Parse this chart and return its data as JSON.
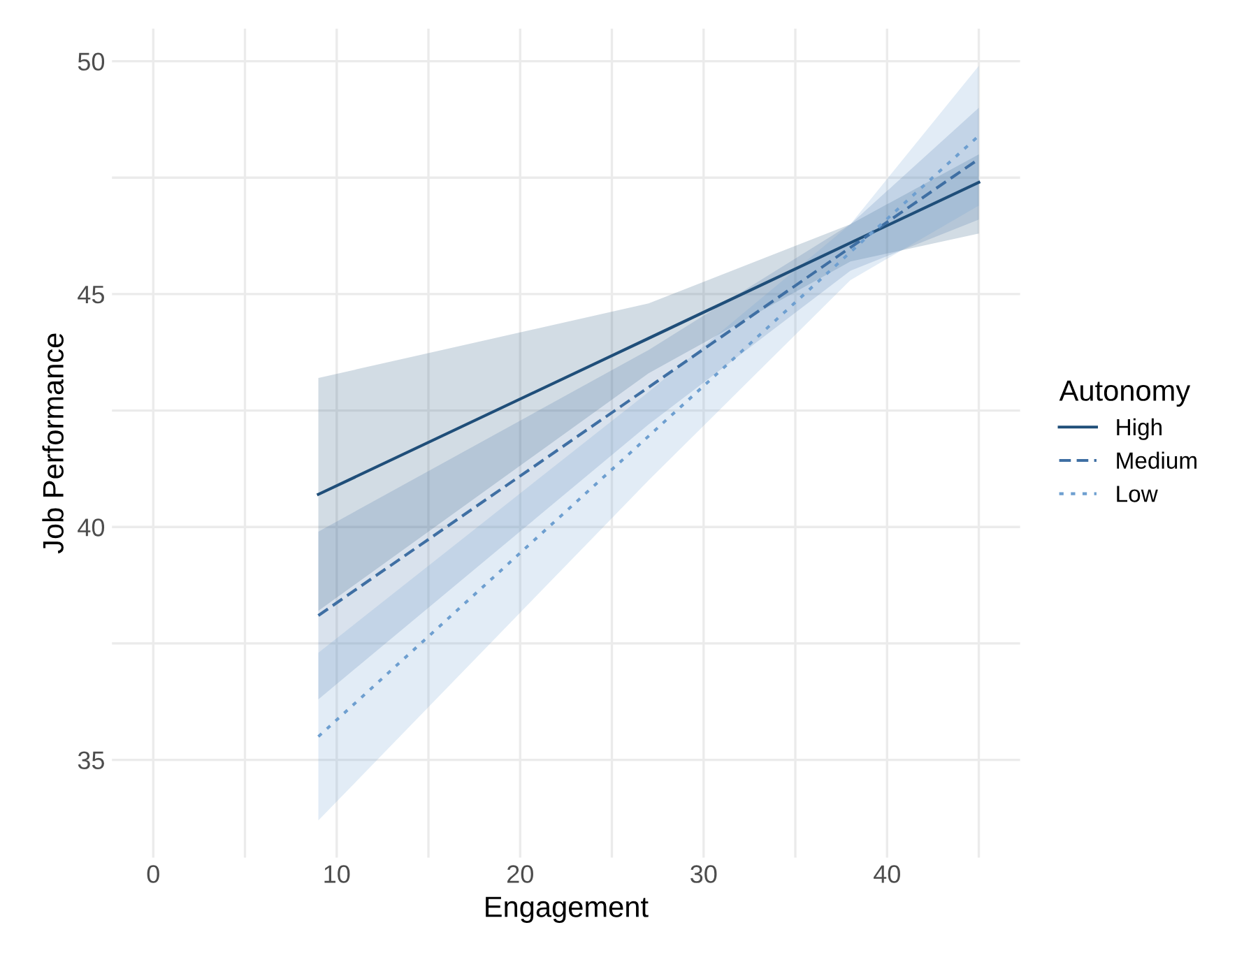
{
  "chart_data": {
    "type": "line",
    "xlabel": "Engagement",
    "ylabel": "Job Performance",
    "legend_title": "Autonomy",
    "legend": "right",
    "grid": true,
    "marker": "none",
    "xlim": [
      -2.25,
      47.25
    ],
    "ylim": [
      32.9,
      50.7
    ],
    "xticks": [
      0,
      {
        "value": 5,
        "label": null
      },
      10,
      {
        "value": 15,
        "label": null
      },
      20,
      {
        "value": 25,
        "label": null
      },
      30,
      {
        "value": 35,
        "label": null
      },
      40,
      {
        "value": 45,
        "label": null
      }
    ],
    "yticks": [
      35,
      {
        "value": 37.5,
        "label": null
      },
      40,
      {
        "value": 42.5,
        "label": null
      },
      45,
      {
        "value": 47.5,
        "label": null
      },
      50
    ],
    "x": [
      9,
      27,
      38,
      45
    ],
    "series": [
      {
        "name": "High",
        "color": "#1f4e79",
        "line_style": "solid",
        "values": [
          40.7,
          44.05,
          46.1,
          47.4
        ],
        "lower": [
          38.2,
          43.3,
          45.7,
          46.3
        ],
        "upper": [
          43.2,
          44.8,
          46.5,
          48.0
        ]
      },
      {
        "name": "Medium",
        "color": "#3f6fa3",
        "line_style": "dashed",
        "values": [
          38.1,
          43.0,
          46.0,
          47.9
        ],
        "lower": [
          36.3,
          42.2,
          45.5,
          46.6
        ],
        "upper": [
          39.9,
          43.8,
          46.5,
          49.0
        ]
      },
      {
        "name": "Low",
        "color": "#6e9fd0",
        "line_style": "dotted",
        "values": [
          35.5,
          41.95,
          45.9,
          48.4
        ],
        "lower": [
          33.7,
          41.0,
          45.3,
          46.9
        ],
        "upper": [
          37.3,
          42.9,
          46.5,
          49.9
        ]
      }
    ]
  }
}
